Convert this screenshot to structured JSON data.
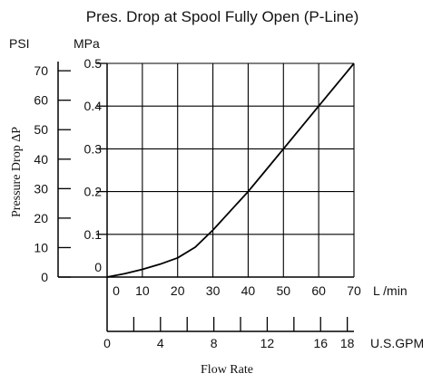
{
  "chart_data": {
    "type": "line",
    "title": "Pres. Drop at Spool Fully Open (P-Line)",
    "ylabel": "Pressure Drop ΔP",
    "xlabel": "Flow Rate",
    "x_primary": {
      "unit": "L /min",
      "range": [
        0,
        70
      ],
      "ticks": [
        "0",
        "10",
        "20",
        "30",
        "40",
        "50",
        "60",
        "70"
      ]
    },
    "x_secondary": {
      "unit": "U.S.GPM",
      "range": [
        0,
        18.5
      ],
      "ticks": [
        {
          "value": 0,
          "label": "0"
        },
        {
          "value": 2,
          "label": ""
        },
        {
          "value": 4,
          "label": "4"
        },
        {
          "value": 6,
          "label": ""
        },
        {
          "value": 8,
          "label": "8"
        },
        {
          "value": 10,
          "label": ""
        },
        {
          "value": 12,
          "label": "12"
        },
        {
          "value": 14,
          "label": ""
        },
        {
          "value": 16,
          "label": "16"
        },
        {
          "value": 18,
          "label": "18"
        }
      ]
    },
    "y_psi": {
      "unit": "PSI",
      "range": [
        0,
        72.5
      ],
      "ticks": [
        "0",
        "10",
        "20",
        "30",
        "40",
        "50",
        "60",
        "70"
      ]
    },
    "y_mpa": {
      "unit": "MPa",
      "range": [
        0,
        0.5
      ],
      "ticks": [
        "0",
        "0.1",
        "0.2",
        "0.3",
        "0.4",
        "0.5"
      ]
    },
    "grid": true,
    "series": [
      {
        "x": [
          0,
          5,
          10,
          15,
          20,
          25,
          30,
          35,
          40,
          45,
          50,
          55,
          60,
          65,
          70
        ],
        "y": [
          0,
          0.008,
          0.018,
          0.03,
          0.045,
          0.07,
          0.11,
          0.155,
          0.2,
          0.25,
          0.3,
          0.35,
          0.4,
          0.45,
          0.5
        ]
      }
    ]
  }
}
